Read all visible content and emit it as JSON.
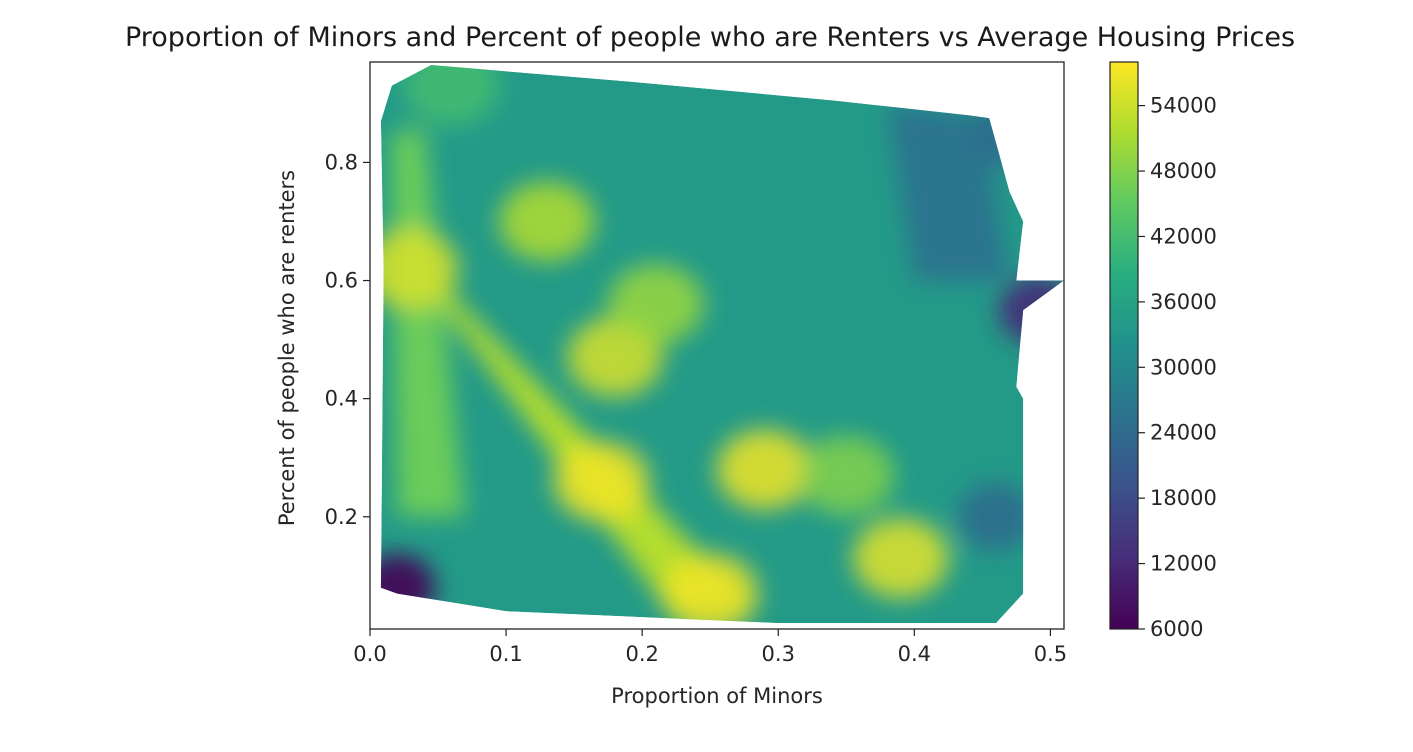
{
  "chart_data": {
    "type": "heatmap",
    "subtype": "filled-contour",
    "title": "Proportion of Minors and Percent of people who are Renters vs Average Housing Prices",
    "xlabel": "Proportion of Minors",
    "ylabel": "Percent of people who are renters",
    "xlim": [
      0.0,
      0.51
    ],
    "ylim": [
      0.01,
      0.97
    ],
    "x_ticks": [
      0.0,
      0.1,
      0.2,
      0.3,
      0.4,
      0.5
    ],
    "x_tick_labels": [
      "0.0",
      "0.1",
      "0.2",
      "0.3",
      "0.4",
      "0.5"
    ],
    "y_ticks": [
      0.2,
      0.4,
      0.6,
      0.8
    ],
    "y_tick_labels": [
      "0.2",
      "0.4",
      "0.6",
      "0.8"
    ],
    "colormap": "viridis",
    "colorbar": {
      "range": [
        6000,
        58000
      ],
      "ticks": [
        6000,
        12000,
        18000,
        24000,
        30000,
        36000,
        42000,
        48000,
        54000
      ],
      "tick_labels": [
        "6000",
        "12000",
        "18000",
        "24000",
        "30000",
        "36000",
        "42000",
        "48000",
        "54000"
      ]
    },
    "grid": false,
    "legend": "colorbar-right",
    "region_outline": [
      [
        0.008,
        0.08
      ],
      [
        0.01,
        0.62
      ],
      [
        0.008,
        0.87
      ],
      [
        0.016,
        0.93
      ],
      [
        0.045,
        0.965
      ],
      [
        0.2,
        0.935
      ],
      [
        0.34,
        0.905
      ],
      [
        0.44,
        0.88
      ],
      [
        0.455,
        0.875
      ],
      [
        0.47,
        0.75
      ],
      [
        0.48,
        0.7
      ],
      [
        0.475,
        0.6
      ],
      [
        0.51,
        0.6
      ],
      [
        0.48,
        0.55
      ],
      [
        0.475,
        0.42
      ],
      [
        0.48,
        0.4
      ],
      [
        0.48,
        0.07
      ],
      [
        0.46,
        0.02
      ],
      [
        0.3,
        0.02
      ],
      [
        0.1,
        0.04
      ],
      [
        0.02,
        0.07
      ]
    ],
    "hotspots": [
      {
        "x": 0.03,
        "y": 0.62,
        "value": 55000
      },
      {
        "x": 0.13,
        "y": 0.7,
        "value": 52000
      },
      {
        "x": 0.18,
        "y": 0.47,
        "value": 55000
      },
      {
        "x": 0.17,
        "y": 0.26,
        "value": 57000
      },
      {
        "x": 0.29,
        "y": 0.28,
        "value": 57000
      },
      {
        "x": 0.25,
        "y": 0.07,
        "value": 57000
      },
      {
        "x": 0.39,
        "y": 0.13,
        "value": 56000
      },
      {
        "x": 0.35,
        "y": 0.27,
        "value": 48000
      },
      {
        "x": 0.21,
        "y": 0.56,
        "value": 50000
      },
      {
        "x": 0.06,
        "y": 0.93,
        "value": 42000
      }
    ],
    "lowspots": [
      {
        "x": 0.02,
        "y": 0.08,
        "value": 6000
      },
      {
        "x": 0.49,
        "y": 0.55,
        "value": 12000
      },
      {
        "x": 0.47,
        "y": 0.85,
        "value": 24000
      },
      {
        "x": 0.46,
        "y": 0.2,
        "value": 24000
      }
    ]
  }
}
